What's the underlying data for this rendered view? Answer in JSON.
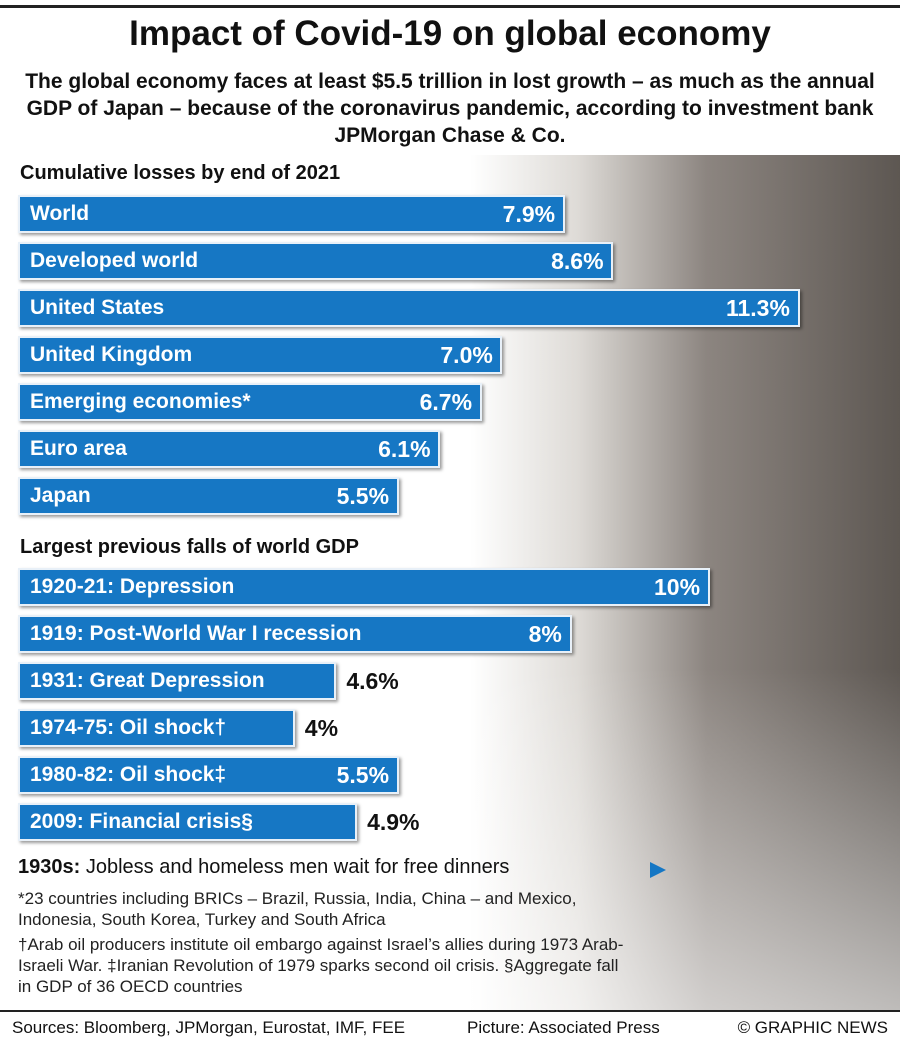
{
  "header": {
    "title": "Impact of Covid-19 on global economy",
    "subtitle": "The global economy faces at least $5.5 trillion in lost growth – as much as the annual GDP of Japan – because of the coronavirus pandemic, according to investment bank JPMorgan Chase & Co."
  },
  "chart_data": [
    {
      "type": "bar",
      "orientation": "horizontal",
      "title": "Cumulative losses by end of 2021",
      "color": "#1677c4",
      "categories": [
        "World",
        "Developed world",
        "United States",
        "United Kingdom",
        "Emerging economies*",
        "Euro area",
        "Japan"
      ],
      "values": [
        7.9,
        8.6,
        11.3,
        7.0,
        6.7,
        6.1,
        5.5
      ],
      "value_labels": [
        "7.9%",
        "8.6%",
        "11.3%",
        "7.0%",
        "6.7%",
        "6.1%",
        "5.5%"
      ]
    },
    {
      "type": "bar",
      "orientation": "horizontal",
      "title": "Largest previous falls of world GDP",
      "color": "#1677c4",
      "categories": [
        "1920-21: Depression",
        "1919: Post-World War I recession",
        "1931: Great Depression",
        "1974-75: Oil shock†",
        "1980-82: Oil shock‡",
        "2009: Financial crisis§"
      ],
      "values": [
        10,
        8,
        4.6,
        4,
        5.5,
        4.9
      ],
      "value_labels": [
        "10%",
        "8%",
        "4.6%",
        "4%",
        "5.5%",
        "4.9%"
      ]
    }
  ],
  "caption": {
    "label": "1930s:",
    "text": "Jobless and homeless men wait for free dinners"
  },
  "notes": [
    "*23 countries including BRICs – Brazil, Russia, India, China – and Mexico, Indonesia, South Korea, Turkey and South Africa",
    "†Arab oil producers institute oil embargo against Israel’s allies during 1973 Arab-Israeli War. ‡Iranian Revolution of 1979 sparks second oil crisis. §Aggregate fall in GDP of 36 OECD countries"
  ],
  "footer": {
    "sources": "Sources: Bloomberg, JPMorgan, Eurostat, IMF, FEE",
    "picture": "Picture: Associated Press",
    "credit": "© GRAPHIC NEWS"
  }
}
